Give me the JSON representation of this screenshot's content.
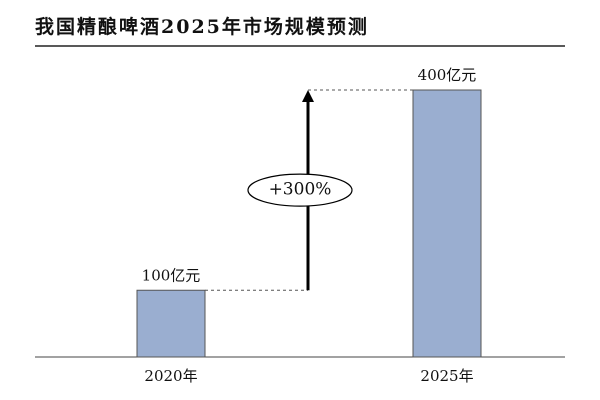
{
  "chart_data": {
    "type": "bar",
    "title": "我国精酿啤酒2025年市场规模预测",
    "categories": [
      "2020年",
      "2025年"
    ],
    "values": [
      100,
      400
    ],
    "value_labels": [
      "100亿元",
      "400亿元"
    ],
    "color": "#9aaed0",
    "annotation": "+300%"
  }
}
